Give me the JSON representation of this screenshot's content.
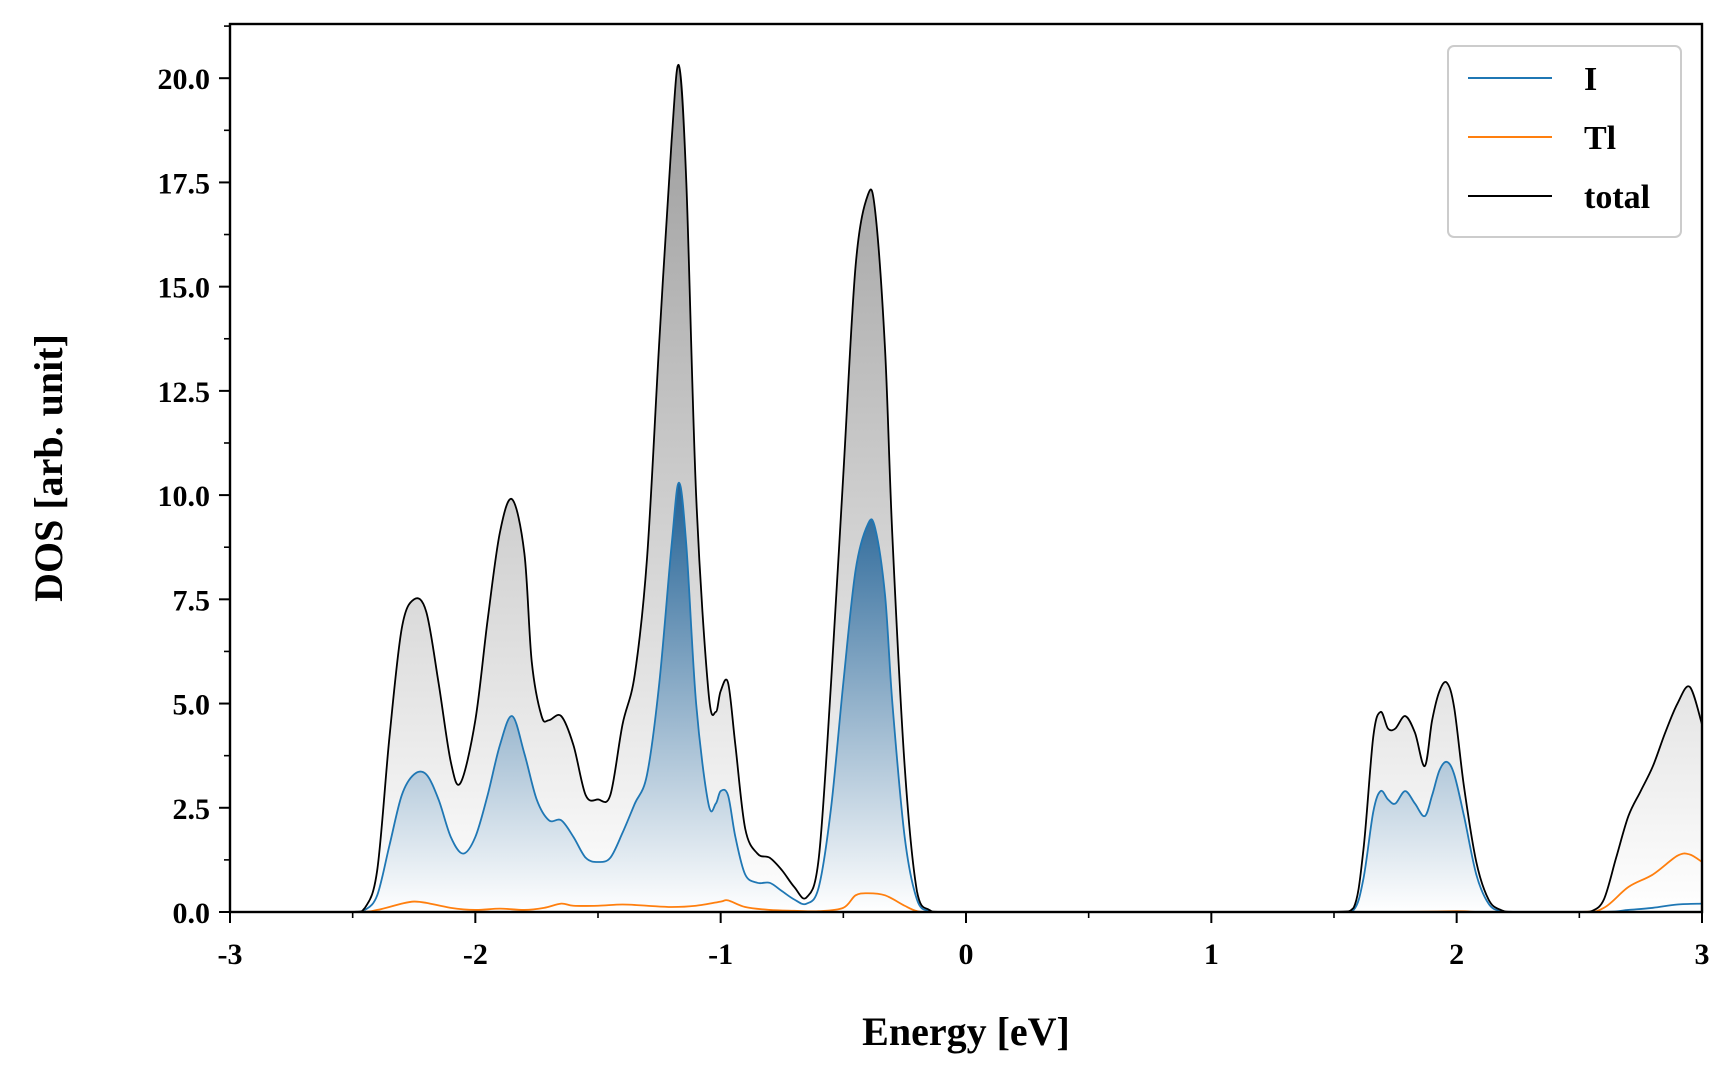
{
  "chart_data": {
    "type": "area",
    "title": "",
    "xlabel": "Energy [eV]",
    "ylabel": "DOS [arb. unit]",
    "xlim": [
      -3,
      3
    ],
    "ylim": [
      0,
      21.3
    ],
    "xticks": [
      -3,
      -2,
      -1,
      0,
      1,
      2,
      3
    ],
    "xtick_labels": [
      "-3",
      "-2",
      "-1",
      "0",
      "1",
      "2",
      "3"
    ],
    "yticks": [
      0,
      2.5,
      5,
      7.5,
      10,
      12.5,
      15,
      17.5,
      20
    ],
    "ytick_labels": [
      "0.0",
      "2.5",
      "5.0",
      "7.5",
      "10.0",
      "12.5",
      "15.0",
      "17.5",
      "20.0"
    ],
    "grid": false,
    "legend_position": "top-right",
    "series": [
      {
        "name": "I",
        "color": "#1f77b4",
        "filled": true,
        "x": [
          -3.0,
          -2.5,
          -2.45,
          -2.4,
          -2.35,
          -2.3,
          -2.25,
          -2.2,
          -2.15,
          -2.1,
          -2.05,
          -2.0,
          -1.95,
          -1.9,
          -1.85,
          -1.8,
          -1.75,
          -1.7,
          -1.65,
          -1.6,
          -1.55,
          -1.5,
          -1.45,
          -1.4,
          -1.35,
          -1.3,
          -1.25,
          -1.2,
          -1.17,
          -1.14,
          -1.1,
          -1.05,
          -1.02,
          -1.0,
          -0.97,
          -0.94,
          -0.9,
          -0.85,
          -0.8,
          -0.75,
          -0.7,
          -0.65,
          -0.6,
          -0.55,
          -0.5,
          -0.45,
          -0.4,
          -0.37,
          -0.33,
          -0.3,
          -0.25,
          -0.2,
          -0.15,
          -0.1,
          1.5,
          1.58,
          1.62,
          1.66,
          1.69,
          1.72,
          1.75,
          1.79,
          1.83,
          1.87,
          1.9,
          1.93,
          1.96,
          1.99,
          2.03,
          2.08,
          2.13,
          2.18,
          2.25,
          2.6,
          2.7,
          2.8,
          2.9,
          3.0
        ],
        "y": [
          0,
          0,
          0.05,
          0.4,
          1.6,
          2.8,
          3.3,
          3.3,
          2.7,
          1.8,
          1.4,
          1.8,
          2.8,
          4.0,
          4.7,
          3.8,
          2.7,
          2.2,
          2.2,
          1.8,
          1.3,
          1.2,
          1.3,
          1.9,
          2.6,
          3.3,
          5.5,
          8.8,
          10.3,
          8.8,
          5.0,
          2.6,
          2.6,
          2.9,
          2.8,
          1.8,
          0.9,
          0.7,
          0.7,
          0.5,
          0.3,
          0.2,
          0.6,
          2.5,
          5.5,
          8.2,
          9.3,
          9.2,
          7.6,
          5.0,
          1.8,
          0.3,
          0.02,
          0,
          0,
          0.05,
          0.8,
          2.4,
          2.9,
          2.7,
          2.6,
          2.9,
          2.6,
          2.3,
          2.8,
          3.4,
          3.6,
          3.3,
          2.3,
          0.9,
          0.2,
          0.02,
          0,
          0,
          0.05,
          0.1,
          0.18,
          0.2
        ]
      },
      {
        "name": "Tl",
        "color": "#ff7f0e",
        "filled": false,
        "x": [
          -3.0,
          -2.5,
          -2.4,
          -2.3,
          -2.25,
          -2.2,
          -2.1,
          -2.0,
          -1.9,
          -1.8,
          -1.72,
          -1.65,
          -1.6,
          -1.5,
          -1.4,
          -1.3,
          -1.2,
          -1.1,
          -1.0,
          -0.97,
          -0.9,
          -0.8,
          -0.7,
          -0.6,
          -0.5,
          -0.45,
          -0.4,
          -0.33,
          -0.25,
          -0.2,
          -0.15,
          1.6,
          2.0,
          2.1,
          2.5,
          2.6,
          2.7,
          2.8,
          2.9,
          2.95,
          3.0
        ],
        "y": [
          0,
          0,
          0.05,
          0.2,
          0.25,
          0.22,
          0.1,
          0.05,
          0.08,
          0.05,
          0.1,
          0.2,
          0.15,
          0.15,
          0.18,
          0.15,
          0.12,
          0.15,
          0.25,
          0.28,
          0.12,
          0.05,
          0.03,
          0.02,
          0.1,
          0.4,
          0.45,
          0.4,
          0.15,
          0.02,
          0,
          0,
          0.02,
          0,
          0,
          0.1,
          0.6,
          0.9,
          1.35,
          1.38,
          1.2
        ]
      },
      {
        "name": "total",
        "color": "#000000",
        "filled": true,
        "x": [
          -3.0,
          -2.5,
          -2.45,
          -2.4,
          -2.35,
          -2.3,
          -2.25,
          -2.2,
          -2.15,
          -2.1,
          -2.06,
          -2.0,
          -1.95,
          -1.9,
          -1.85,
          -1.8,
          -1.77,
          -1.73,
          -1.7,
          -1.65,
          -1.6,
          -1.55,
          -1.5,
          -1.45,
          -1.4,
          -1.35,
          -1.3,
          -1.25,
          -1.2,
          -1.17,
          -1.14,
          -1.1,
          -1.05,
          -1.02,
          -1.0,
          -0.97,
          -0.94,
          -0.9,
          -0.85,
          -0.8,
          -0.75,
          -0.7,
          -0.65,
          -0.6,
          -0.55,
          -0.5,
          -0.45,
          -0.4,
          -0.37,
          -0.33,
          -0.3,
          -0.25,
          -0.2,
          -0.15,
          -0.1,
          1.5,
          1.58,
          1.62,
          1.66,
          1.69,
          1.72,
          1.75,
          1.79,
          1.83,
          1.87,
          1.9,
          1.93,
          1.96,
          1.99,
          2.03,
          2.08,
          2.13,
          2.18,
          2.25,
          2.5,
          2.55,
          2.6,
          2.65,
          2.7,
          2.75,
          2.8,
          2.85,
          2.9,
          2.95,
          3.0
        ],
        "y": [
          0,
          0,
          0.1,
          1.0,
          4.2,
          6.8,
          7.5,
          7.2,
          5.5,
          3.6,
          3.1,
          4.6,
          7.0,
          9.1,
          9.9,
          8.6,
          6.0,
          4.7,
          4.6,
          4.7,
          4.0,
          2.8,
          2.7,
          2.8,
          4.5,
          5.7,
          8.5,
          13.7,
          18.5,
          20.3,
          17.5,
          10.0,
          5.3,
          4.8,
          5.3,
          5.5,
          4.0,
          2.0,
          1.4,
          1.3,
          1.0,
          0.6,
          0.35,
          1.3,
          5.5,
          10.5,
          15.5,
          17.2,
          16.8,
          13.5,
          9.0,
          3.5,
          0.5,
          0.05,
          0,
          0,
          0.1,
          1.5,
          4.2,
          4.8,
          4.4,
          4.4,
          4.7,
          4.3,
          3.5,
          4.6,
          5.3,
          5.5,
          4.9,
          3.0,
          1.2,
          0.3,
          0.05,
          0,
          0,
          0.02,
          0.3,
          1.3,
          2.3,
          2.9,
          3.5,
          4.3,
          5.0,
          5.4,
          4.5
        ]
      }
    ]
  }
}
